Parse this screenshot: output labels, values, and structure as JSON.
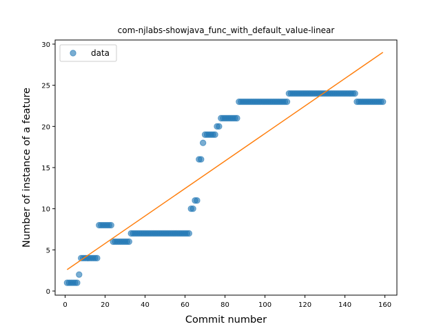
{
  "chart_data": {
    "type": "scatter",
    "title": "com-njlabs-showjava_func_with_default_value-linear",
    "xlabel": "Commit number",
    "ylabel": "Number of instance of a feature",
    "xlim": [
      -5,
      166
    ],
    "ylim": [
      -0.5,
      30.5
    ],
    "xticks": [
      0,
      20,
      40,
      60,
      80,
      100,
      120,
      140,
      160
    ],
    "yticks": [
      0,
      5,
      10,
      15,
      20,
      25,
      30
    ],
    "grid": false,
    "legend": {
      "position": "top-left",
      "entries": [
        "data"
      ]
    },
    "colors": {
      "data": "#1f77b4",
      "fit": "#ff7f0e"
    },
    "series": [
      {
        "name": "data",
        "kind": "scatter",
        "segments": [
          {
            "x_start": 1,
            "x_end": 6,
            "y": 1
          },
          {
            "x_start": 7,
            "x_end": 7,
            "y": 2
          },
          {
            "x_start": 8,
            "x_end": 16,
            "y": 4
          },
          {
            "x_start": 17,
            "x_end": 23,
            "y": 8
          },
          {
            "x_start": 24,
            "x_end": 32,
            "y": 6
          },
          {
            "x_start": 33,
            "x_end": 62,
            "y": 7
          },
          {
            "x_start": 63,
            "x_end": 64,
            "y": 10
          },
          {
            "x_start": 65,
            "x_end": 66,
            "y": 11
          },
          {
            "x_start": 67,
            "x_end": 68,
            "y": 16
          },
          {
            "x_start": 69,
            "x_end": 69,
            "y": 18
          },
          {
            "x_start": 70,
            "x_end": 75,
            "y": 19
          },
          {
            "x_start": 76,
            "x_end": 77,
            "y": 20
          },
          {
            "x_start": 78,
            "x_end": 86,
            "y": 21
          },
          {
            "x_start": 87,
            "x_end": 111,
            "y": 23
          },
          {
            "x_start": 112,
            "x_end": 145,
            "y": 24
          },
          {
            "x_start": 146,
            "x_end": 159,
            "y": 23
          }
        ]
      },
      {
        "kind": "line",
        "x": [
          1,
          159
        ],
        "y": [
          2.6,
          29.0
        ]
      }
    ]
  }
}
